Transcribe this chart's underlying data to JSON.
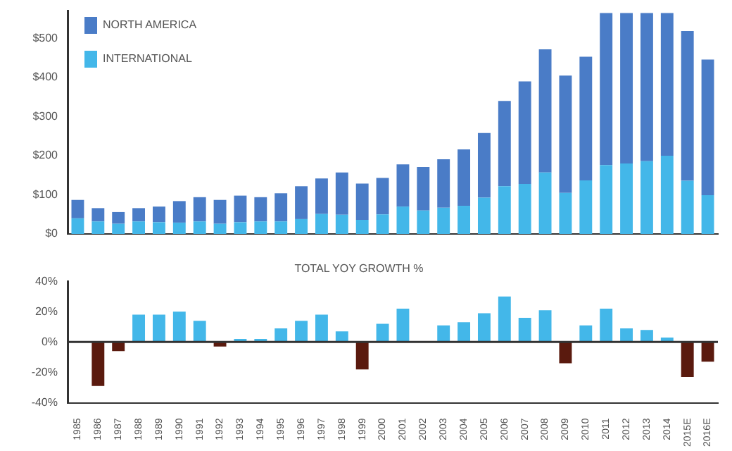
{
  "chart_data": [
    {
      "type": "bar",
      "stacked": true,
      "legend": "top left",
      "categories": [
        null,
        null,
        null,
        null,
        null,
        null,
        null,
        null,
        null,
        null,
        null,
        null,
        null,
        null,
        null,
        null,
        null,
        null,
        null,
        null,
        null,
        null,
        null,
        null,
        null,
        null,
        null,
        null,
        null,
        null,
        null,
        null
      ],
      "ylim": [
        0,
        570
      ],
      "yticks": [
        {
          "value": 0,
          "label": "$0"
        },
        {
          "value": 100,
          "label": "$100"
        },
        {
          "value": 200,
          "label": "$200"
        },
        {
          "value": 300,
          "label": "$300"
        },
        {
          "value": 400,
          "label": "$400"
        },
        {
          "value": 500,
          "label": "$500"
        }
      ],
      "series": [
        {
          "name": "INTERNATIONAL",
          "color": "#43b7e9",
          "values": [
            40,
            32,
            26,
            32,
            30,
            29,
            32,
            26,
            30,
            32,
            32,
            38,
            51,
            49,
            36,
            50,
            70,
            60,
            67,
            72,
            93,
            122,
            128,
            157,
            105,
            137,
            176,
            180,
            186,
            200,
            136,
            99
          ]
        },
        {
          "name": "NORTH AMERICA",
          "color": "#4a7cc7",
          "values": [
            47,
            34,
            30,
            34,
            40,
            55,
            62,
            61,
            68,
            62,
            72,
            84,
            91,
            108,
            93,
            93,
            108,
            111,
            124,
            144,
            165,
            218,
            262,
            315,
            300,
            316,
            389,
            385,
            379,
            365,
            383,
            347
          ]
        }
      ]
    },
    {
      "type": "bar",
      "title": "TOTAL YOY GROWTH %",
      "categories": [
        "1985",
        "1986",
        "1987",
        "1988",
        "1989",
        "1990",
        "1991",
        "1992",
        "1993",
        "1994",
        "1995",
        "1996",
        "1997",
        "1998",
        "1999",
        "2000",
        "2001",
        "2002",
        "2003",
        "2004",
        "2005",
        "2006",
        "2007",
        "2008",
        "2009",
        "2010",
        "2011",
        "2012",
        "2013",
        "2014",
        "2015E",
        "2016E"
      ],
      "ylim": [
        -40,
        40
      ],
      "yticks": [
        {
          "value": -40,
          "label": "-40%"
        },
        {
          "value": -20,
          "label": "-20%"
        },
        {
          "value": 0,
          "label": "0%"
        },
        {
          "value": 20,
          "label": "20%"
        },
        {
          "value": 40,
          "label": "40%"
        }
      ],
      "values": [
        null,
        -29,
        -6,
        18,
        18,
        20,
        14,
        -3,
        2,
        2,
        9,
        14,
        18,
        7,
        -18,
        12,
        22,
        null,
        11,
        13,
        19,
        30,
        16,
        21,
        -14,
        11,
        22,
        9,
        8,
        3,
        -23,
        -13
      ],
      "colors": [
        "#43b7e9",
        "#5a1a0e",
        "#5a1a0e",
        "#43b7e9",
        "#43b7e9",
        "#43b7e9",
        "#43b7e9",
        "#5a1a0e",
        "#43b7e9",
        "#43b7e9",
        "#43b7e9",
        "#43b7e9",
        "#43b7e9",
        "#43b7e9",
        "#5a1a0e",
        "#43b7e9",
        "#43b7e9",
        "#43b7e9",
        "#43b7e9",
        "#43b7e9",
        "#43b7e9",
        "#43b7e9",
        "#43b7e9",
        "#43b7e9",
        "#5a1a0e",
        "#43b7e9",
        "#43b7e9",
        "#43b7e9",
        "#43b7e9",
        "#43b7e9",
        "#5a1a0e",
        "#5a1a0e"
      ]
    }
  ]
}
